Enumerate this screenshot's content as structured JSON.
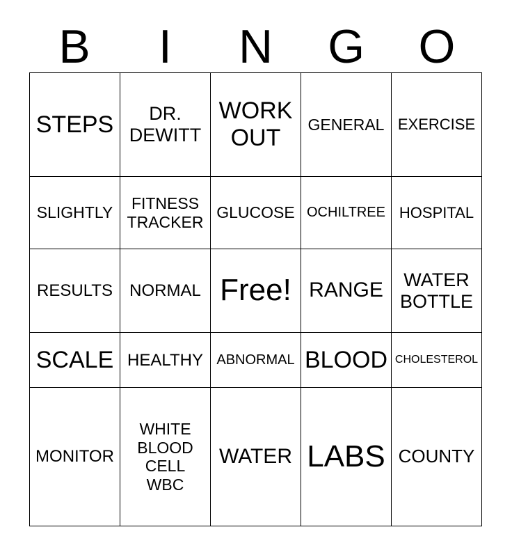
{
  "title": {
    "letters": [
      "B",
      "I",
      "N",
      "G",
      "O"
    ]
  },
  "grid": {
    "rows": [
      [
        {
          "text": "STEPS"
        },
        {
          "text": "DR.\nDEWITT"
        },
        {
          "text": "WORK\nOUT"
        },
        {
          "text": "GENERAL"
        },
        {
          "text": "EXERCISE"
        }
      ],
      [
        {
          "text": "SLIGHTLY"
        },
        {
          "text": "FITNESS\nTRACKER"
        },
        {
          "text": "GLUCOSE"
        },
        {
          "text": "OCHILTREE"
        },
        {
          "text": "HOSPITAL"
        }
      ],
      [
        {
          "text": "RESULTS"
        },
        {
          "text": "NORMAL"
        },
        {
          "text": "Free!"
        },
        {
          "text": "RANGE"
        },
        {
          "text": "WATER\nBOTTLE"
        }
      ],
      [
        {
          "text": "SCALE"
        },
        {
          "text": "HEALTHY"
        },
        {
          "text": "ABNORMAL"
        },
        {
          "text": "BLOOD"
        },
        {
          "text": "CHOLESTEROL"
        }
      ],
      [
        {
          "text": "MONITOR"
        },
        {
          "text": "WHITE\nBLOOD\nCELL\nWBC"
        },
        {
          "text": "WATER"
        },
        {
          "text": "LABS"
        },
        {
          "text": "COUNTY"
        }
      ]
    ]
  },
  "colors": {
    "ink": "#000000",
    "background": "#ffffff",
    "grid_line": "#000000"
  }
}
